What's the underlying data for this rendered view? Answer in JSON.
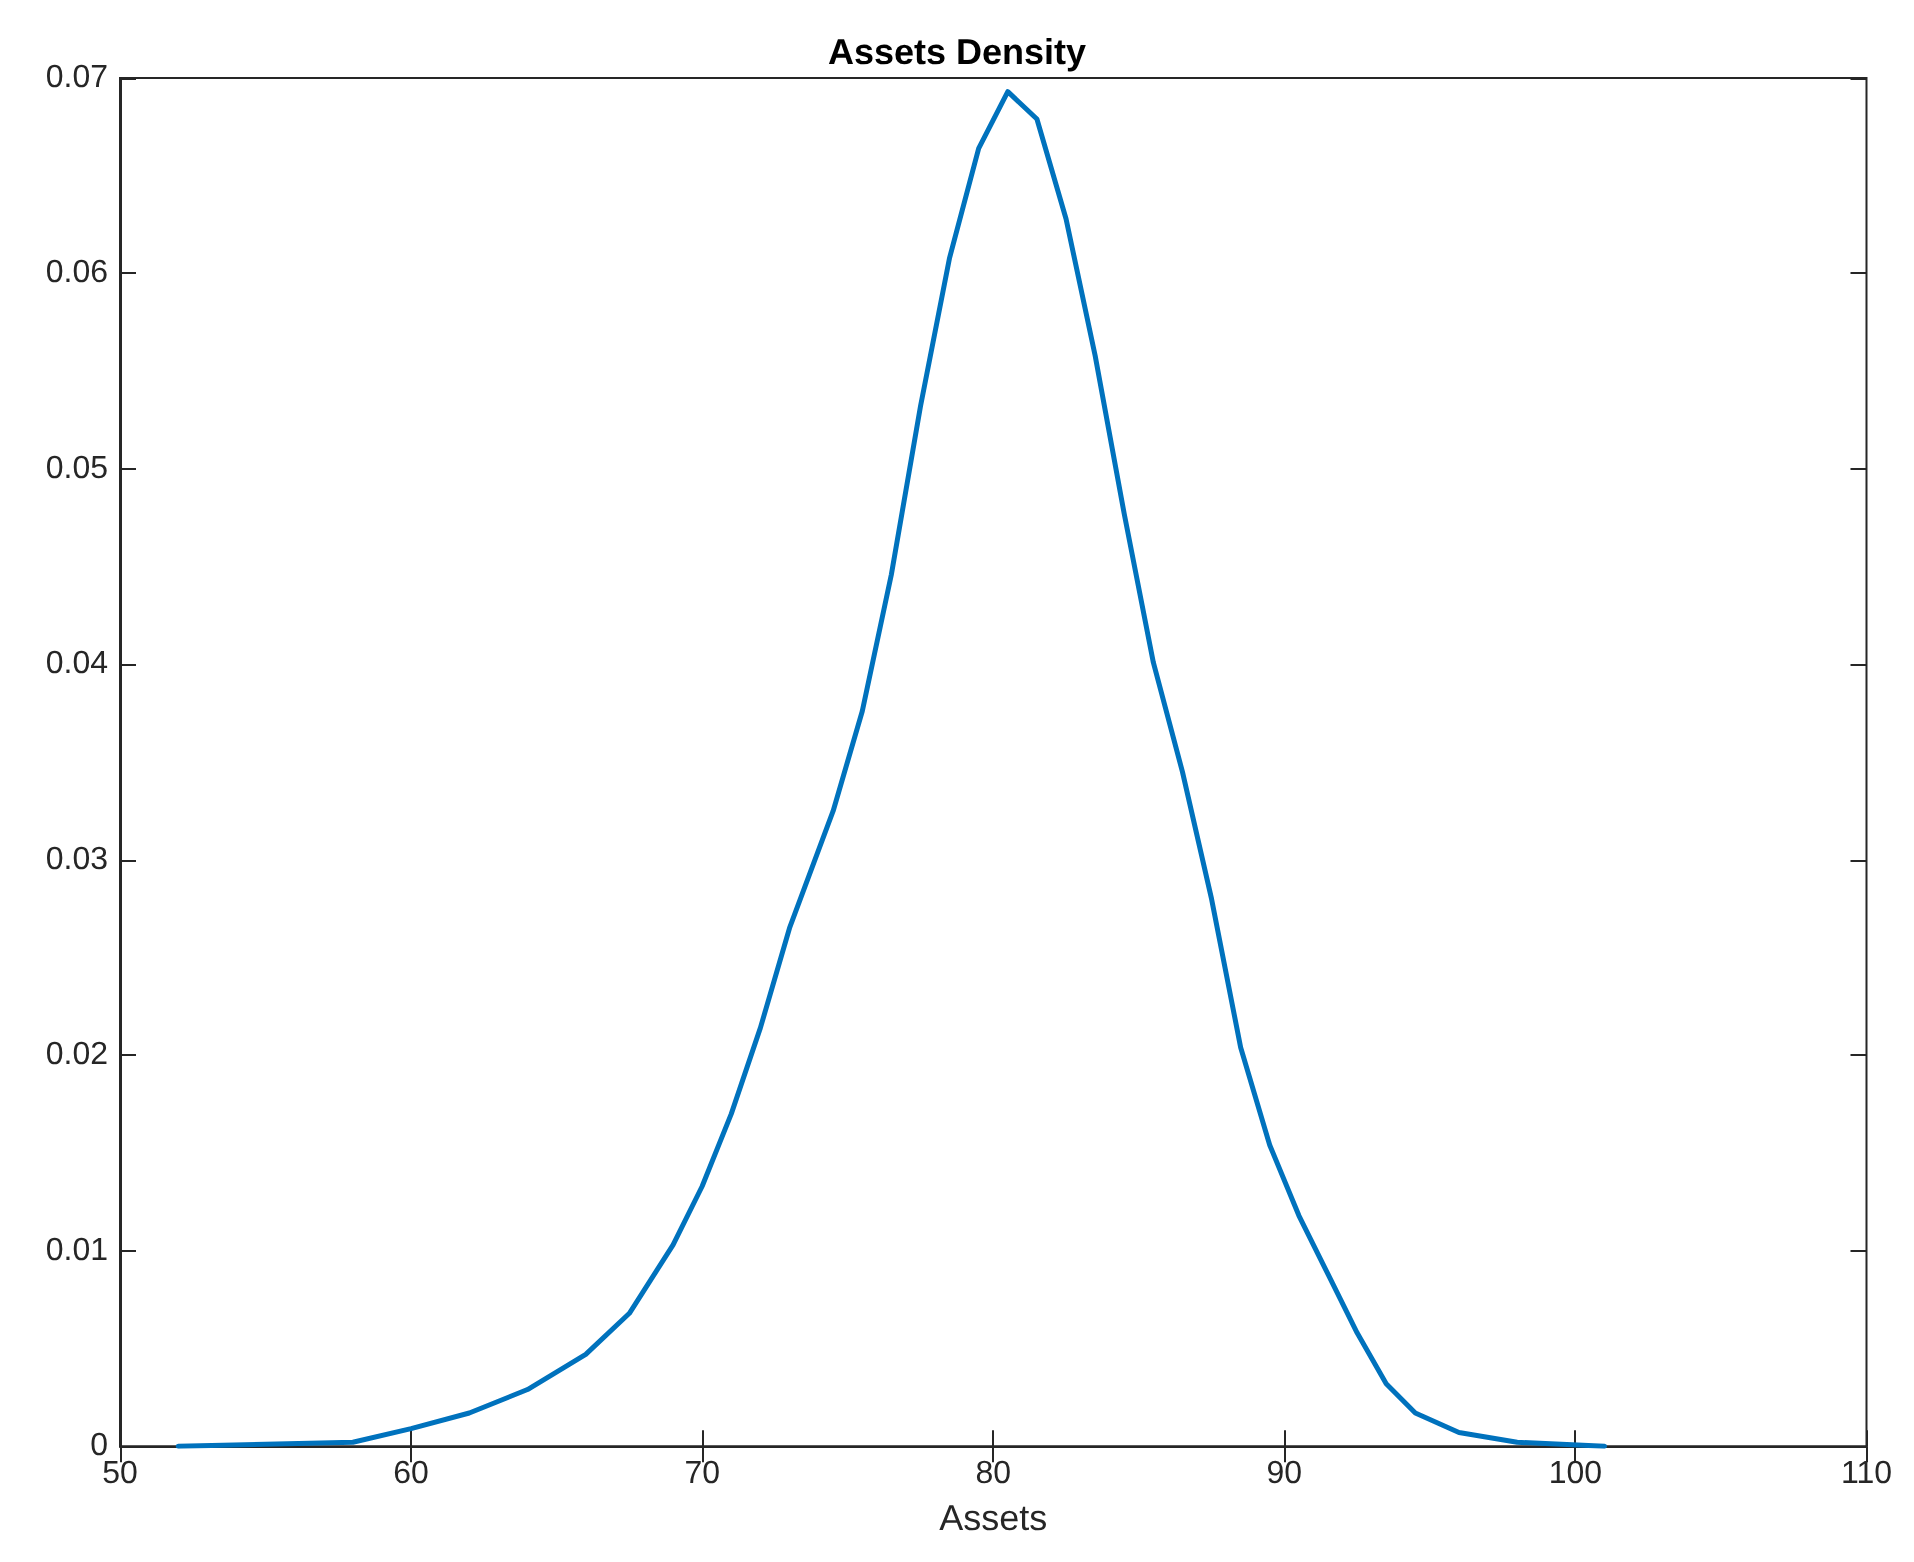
{
  "chart_data": {
    "type": "line",
    "title": "Assets Density",
    "xlabel": "Assets",
    "x": [
      52,
      55,
      58,
      60,
      62,
      64,
      66,
      67.5,
      69,
      70,
      71,
      72,
      73,
      74.5,
      75.5,
      76.5,
      77.5,
      78.5,
      79.5,
      80.5,
      81.5,
      82.5,
      83.5,
      84.5,
      85.5,
      86.5,
      87.5,
      88.5,
      89.5,
      90.5,
      91.5,
      92.5,
      93.5,
      94.5,
      96,
      98,
      101
    ],
    "series": [
      {
        "color": "#0072bd",
        "values": [
          0,
          0.0001,
          0.0002,
          0.0009,
          0.0017,
          0.0029,
          0.0047,
          0.0068,
          0.0103,
          0.0133,
          0.017,
          0.0214,
          0.0265,
          0.0325,
          0.0376,
          0.0446,
          0.0532,
          0.0608,
          0.0664,
          0.0693,
          0.0679,
          0.0628,
          0.0558,
          0.0477,
          0.0401,
          0.0345,
          0.028,
          0.0204,
          0.0154,
          0.0118,
          0.0088,
          0.0058,
          0.0032,
          0.0017,
          0.0007,
          0.0002,
          0
        ]
      }
    ],
    "xlim": [
      50,
      110
    ],
    "xticks": [
      50,
      60,
      70,
      80,
      90,
      100,
      110
    ],
    "ylim": [
      0,
      0.07
    ],
    "yticks": [
      0,
      0.01,
      0.02,
      0.03,
      0.04,
      0.05,
      0.06,
      0.07
    ],
    "grid": false,
    "marker": "none",
    "line_style": "solid"
  }
}
